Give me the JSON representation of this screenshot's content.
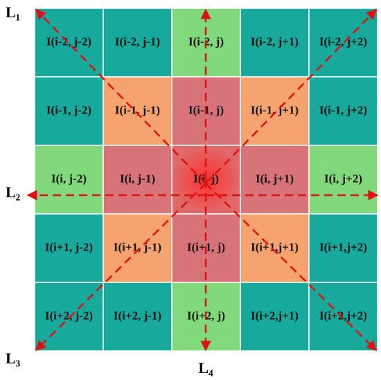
{
  "grid": {
    "rows": [
      [
        "I(i-2, j-2)",
        "I(i-2, j-1)",
        "I(i-2, j)",
        "I(i-2, j+1)",
        "I(i-2, j+2)"
      ],
      [
        "I(i-1, j-2)",
        "I(i-1, j-1)",
        "I(i-1, j)",
        "I(i-1, j+1)",
        "I(i-1, j+2)"
      ],
      [
        "I(i, j-2)",
        "I(i, j-1)",
        "I(i, j)",
        "I(i, j+1)",
        "I(i, j+2)"
      ],
      [
        "I(i+1, j-2)",
        "I(i+1, j-1)",
        "I(i+1, j)",
        "I(i+1,j+1)",
        "I(i+1,j+2)"
      ],
      [
        "I(i+2, j-2)",
        "I(i+2, j-1)",
        "I(i+2, j)",
        "I(i+2,j+1)",
        "I(i+2,j+2)"
      ]
    ]
  },
  "lines": {
    "labels": [
      "L₁",
      "L₂",
      "L₃",
      "L₄"
    ]
  }
}
